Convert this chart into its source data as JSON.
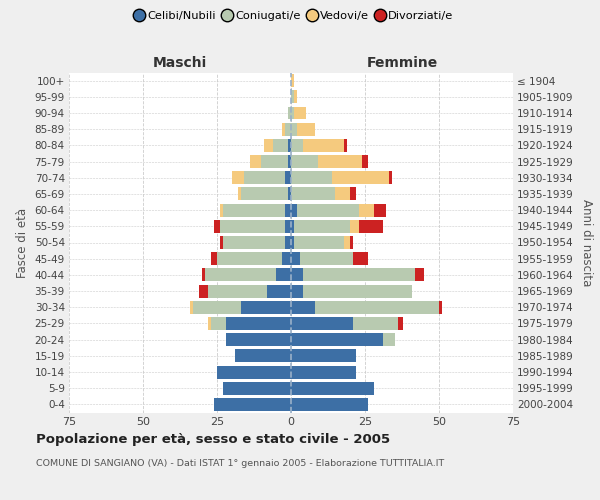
{
  "age_groups": [
    "0-4",
    "5-9",
    "10-14",
    "15-19",
    "20-24",
    "25-29",
    "30-34",
    "35-39",
    "40-44",
    "45-49",
    "50-54",
    "55-59",
    "60-64",
    "65-69",
    "70-74",
    "75-79",
    "80-84",
    "85-89",
    "90-94",
    "95-99",
    "100+"
  ],
  "birth_years": [
    "2000-2004",
    "1995-1999",
    "1990-1994",
    "1985-1989",
    "1980-1984",
    "1975-1979",
    "1970-1974",
    "1965-1969",
    "1960-1964",
    "1955-1959",
    "1950-1954",
    "1945-1949",
    "1940-1944",
    "1935-1939",
    "1930-1934",
    "1925-1929",
    "1920-1924",
    "1915-1919",
    "1910-1914",
    "1905-1909",
    "≤ 1904"
  ],
  "maschi_celibi": [
    26,
    23,
    25,
    19,
    22,
    22,
    17,
    8,
    5,
    3,
    2,
    2,
    2,
    1,
    2,
    1,
    1,
    0,
    0,
    0,
    0
  ],
  "maschi_coniugati": [
    0,
    0,
    0,
    0,
    0,
    5,
    16,
    20,
    24,
    22,
    21,
    22,
    21,
    16,
    14,
    9,
    5,
    2,
    1,
    0,
    0
  ],
  "maschi_vedovi": [
    0,
    0,
    0,
    0,
    0,
    1,
    1,
    0,
    0,
    0,
    0,
    0,
    1,
    1,
    4,
    4,
    3,
    1,
    0,
    0,
    0
  ],
  "maschi_divorziati": [
    0,
    0,
    0,
    0,
    0,
    0,
    0,
    3,
    1,
    2,
    1,
    2,
    0,
    0,
    0,
    0,
    0,
    0,
    0,
    0,
    0
  ],
  "femmine_nubili": [
    26,
    28,
    22,
    22,
    31,
    21,
    8,
    4,
    4,
    3,
    1,
    1,
    2,
    0,
    0,
    0,
    0,
    0,
    0,
    0,
    0
  ],
  "femmine_coniugate": [
    0,
    0,
    0,
    0,
    4,
    15,
    42,
    37,
    38,
    18,
    17,
    19,
    21,
    15,
    14,
    9,
    4,
    2,
    1,
    1,
    0
  ],
  "femmine_vedove": [
    0,
    0,
    0,
    0,
    0,
    0,
    0,
    0,
    0,
    0,
    2,
    3,
    5,
    5,
    19,
    15,
    14,
    6,
    4,
    1,
    1
  ],
  "femmine_divorziate": [
    0,
    0,
    0,
    0,
    0,
    2,
    1,
    0,
    3,
    5,
    1,
    8,
    4,
    2,
    1,
    2,
    1,
    0,
    0,
    0,
    0
  ],
  "color_celibi": "#3d6fa5",
  "color_coniugati": "#b8cab0",
  "color_vedovi": "#f5ca7e",
  "color_divorziati": "#cc2222",
  "legend_labels": [
    "Celibi/Nubili",
    "Coniugati/e",
    "Vedovi/e",
    "Divorziati/e"
  ],
  "title": "Popolazione per età, sesso e stato civile - 2005",
  "subtitle": "COMUNE DI SANGIANO (VA) - Dati ISTAT 1° gennaio 2005 - Elaborazione TUTTITALIA.IT",
  "label_maschi": "Maschi",
  "label_femmine": "Femmine",
  "ylabel_left": "Fasce di età",
  "ylabel_right": "Anni di nascita",
  "xlim": 75,
  "bg_color": "#efefef",
  "plot_bg": "#ffffff",
  "grid_color": "#cccccc"
}
